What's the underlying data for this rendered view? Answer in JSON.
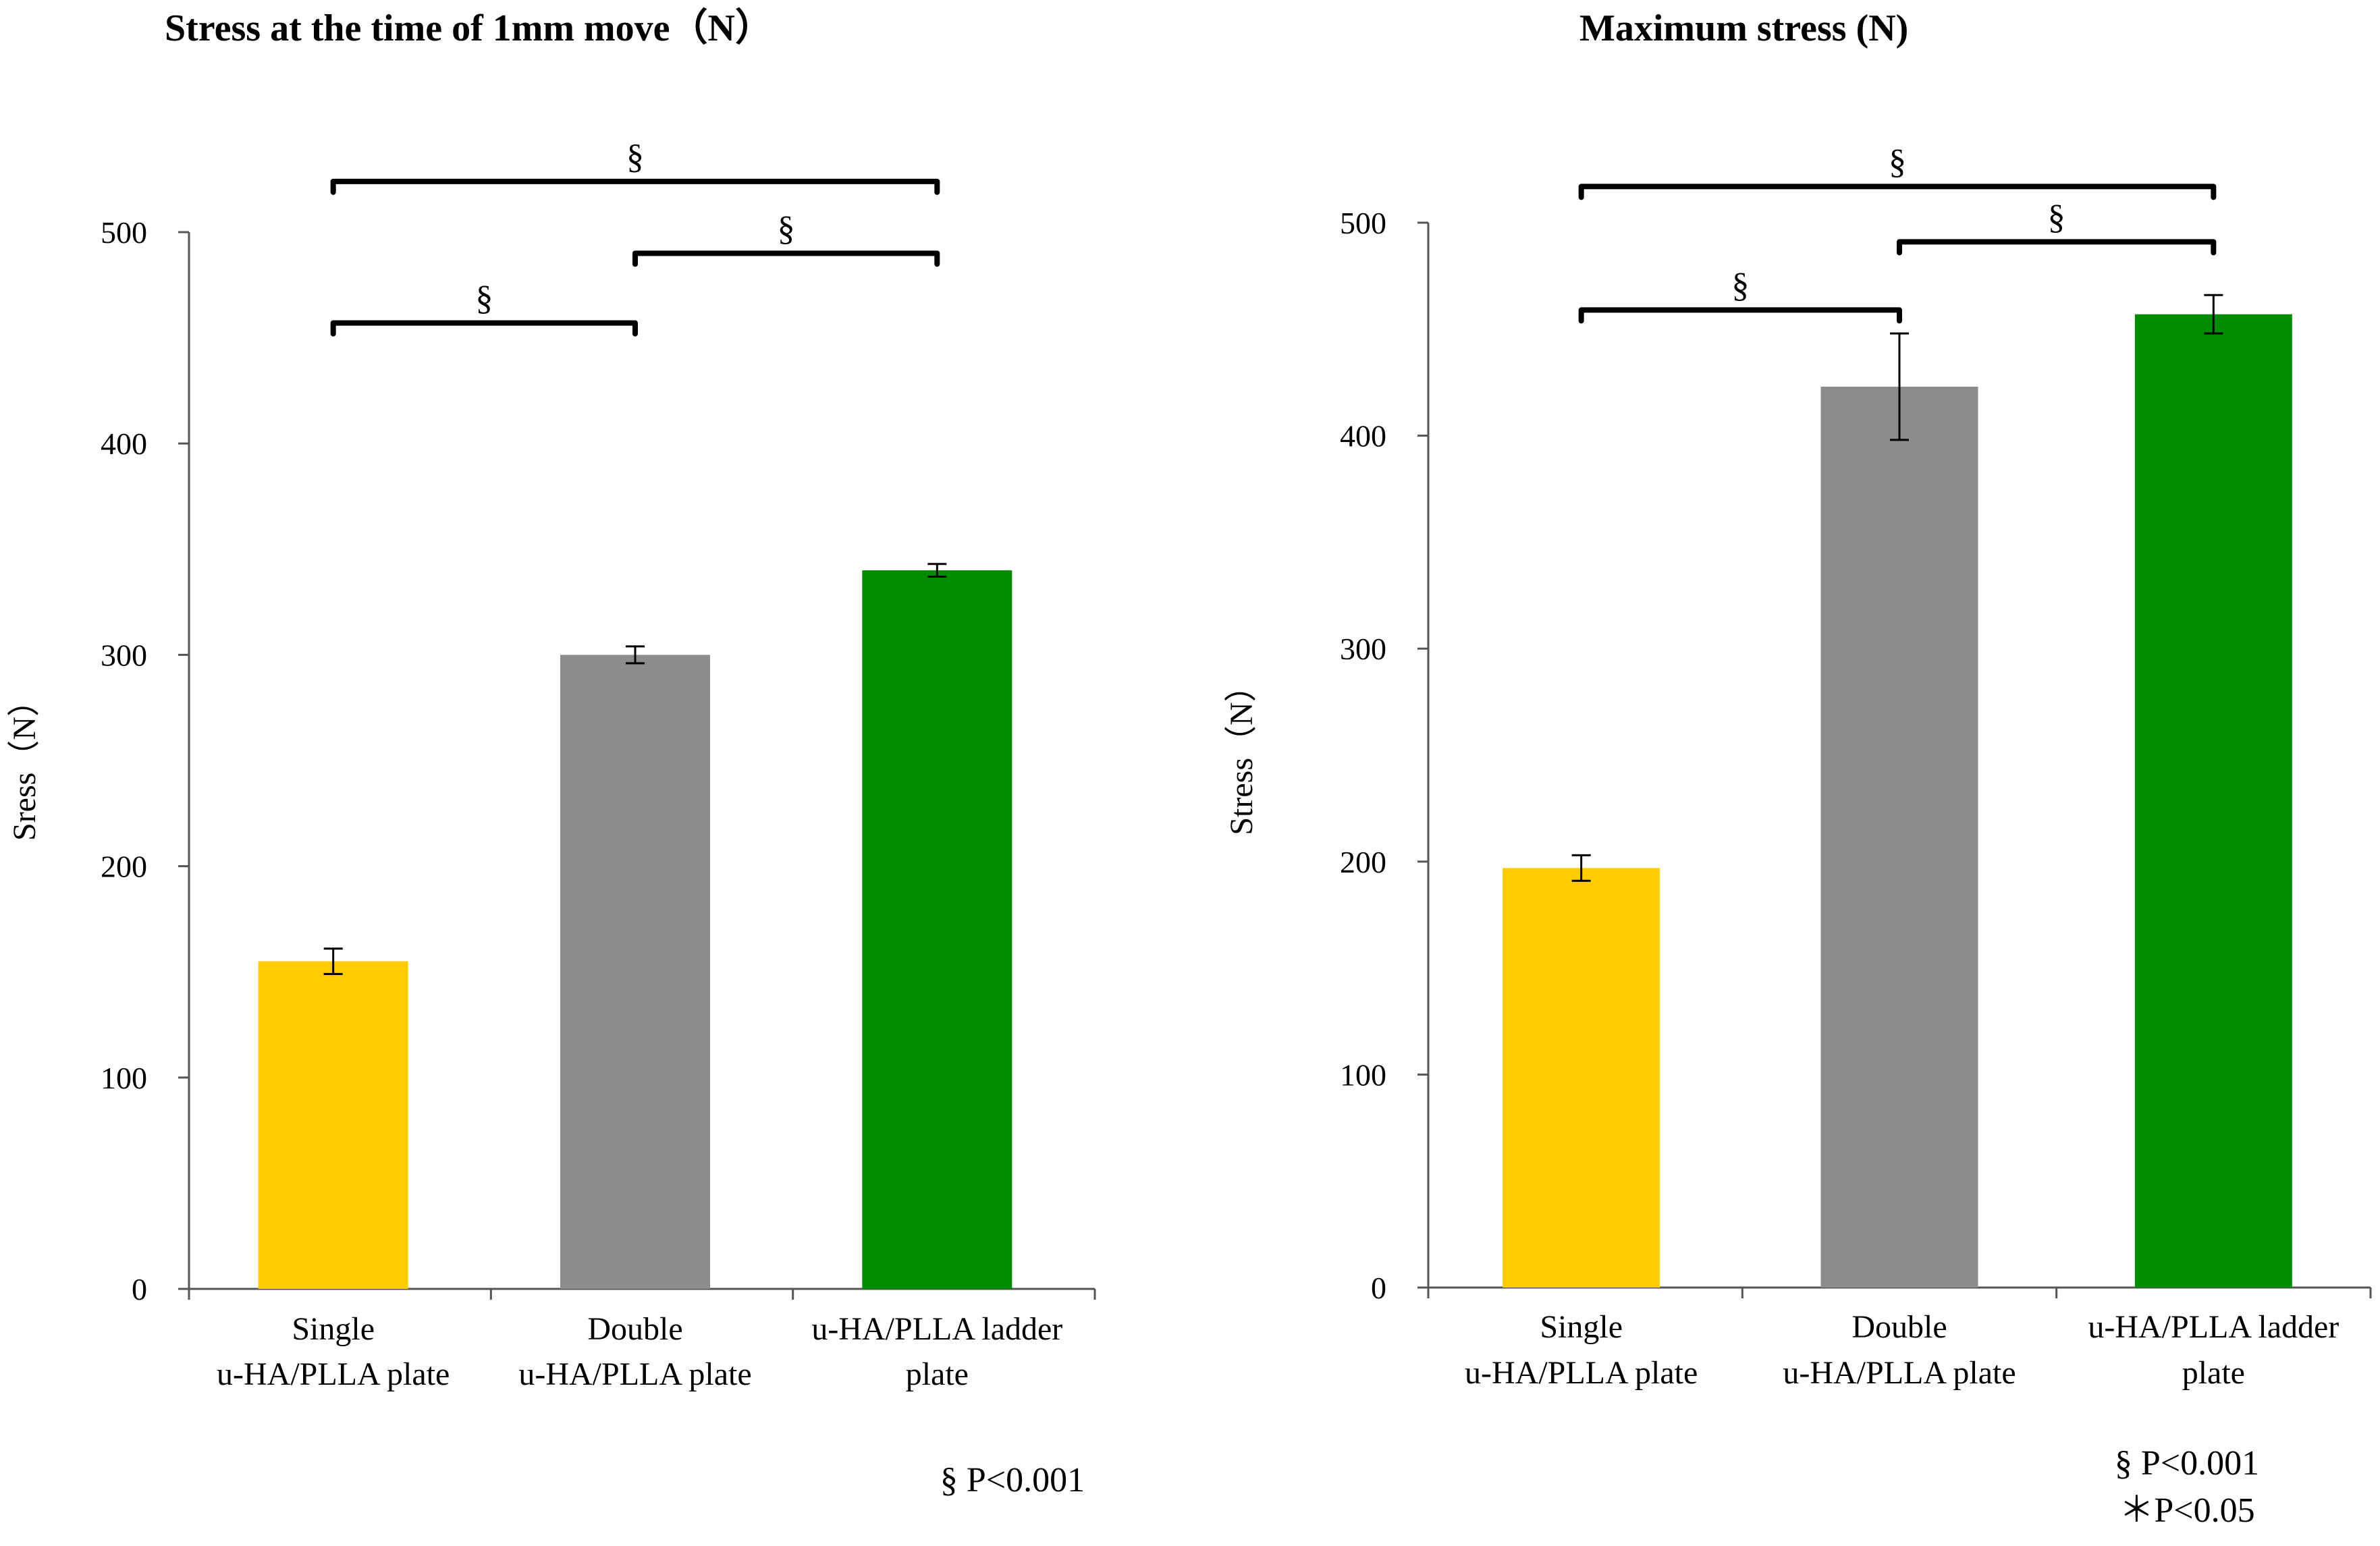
{
  "chart_data": [
    {
      "type": "bar",
      "title": "Stress at the time of 1mm move（N）",
      "xlabel": "",
      "ylabel": "Sress（N）",
      "ylim": [
        0,
        500
      ],
      "yticks": [
        0,
        100,
        200,
        300,
        400,
        500
      ],
      "categories": [
        [
          "Single",
          "u-HA/PLLA plate"
        ],
        [
          "Double",
          "u-HA/PLLA plate"
        ],
        [
          "u-HA/PLLA ladder",
          "plate"
        ]
      ],
      "values": [
        155,
        300,
        340
      ],
      "errors": [
        6,
        4,
        3
      ],
      "colors": [
        "#ffcc00",
        "#8c8c8c",
        "#008c00"
      ],
      "significance": [
        {
          "from": 0,
          "to": 1,
          "label": "§",
          "value": 457
        },
        {
          "from": 1,
          "to": 2,
          "label": "§",
          "value": 490
        },
        {
          "from": 0,
          "to": 2,
          "label": "§",
          "value": 524
        }
      ],
      "notes": [
        "§ P<0.001"
      ],
      "grid": false
    },
    {
      "type": "bar",
      "title": "Maximum stress (N)",
      "xlabel": "",
      "ylabel": "Stress（N）",
      "ylim": [
        0,
        500
      ],
      "yticks": [
        0,
        100,
        200,
        300,
        400,
        500
      ],
      "categories": [
        [
          "Single",
          "u-HA/PLLA plate"
        ],
        [
          "Double",
          "u-HA/PLLA plate"
        ],
        [
          "u-HA/PLLA ladder",
          "plate"
        ]
      ],
      "values": [
        197,
        423,
        457
      ],
      "errors": [
        6,
        25,
        9
      ],
      "colors": [
        "#ffcc00",
        "#8c8c8c",
        "#008c00"
      ],
      "significance": [
        {
          "from": 0,
          "to": 1,
          "label": "§",
          "value": 459
        },
        {
          "from": 1,
          "to": 2,
          "label": "§",
          "value": 491
        },
        {
          "from": 0,
          "to": 2,
          "label": "§",
          "value": 517
        }
      ],
      "notes": [
        "§ P<0.001",
        "＊P<0.05"
      ],
      "grid": false
    }
  ]
}
